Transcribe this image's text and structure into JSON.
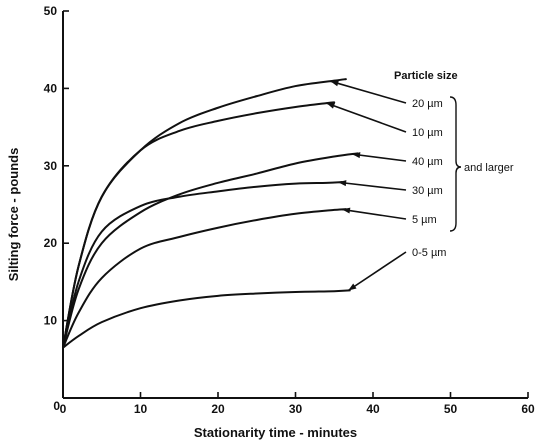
{
  "chart_data": {
    "type": "line",
    "xlabel": "Stationarity time - minutes",
    "ylabel": "Silting force - pounds",
    "xlim": [
      0,
      60
    ],
    "ylim": [
      0,
      50
    ],
    "xticks": [
      0,
      10,
      20,
      30,
      40,
      50,
      60
    ],
    "yticks": [
      10,
      20,
      30,
      40,
      50
    ],
    "grid": false,
    "legend_title": "Particle size",
    "group_label": "and larger",
    "series": [
      {
        "name": "20 µm",
        "x": [
          0,
          2,
          5,
          10,
          15,
          20,
          25,
          30,
          35,
          36.5
        ],
        "y": [
          6.5,
          17,
          26,
          32,
          35.5,
          37.5,
          39,
          40.3,
          41,
          41.2
        ]
      },
      {
        "name": "10 µm",
        "x": [
          0,
          2,
          5,
          10,
          15,
          20,
          25,
          30,
          34,
          35
        ],
        "y": [
          6.5,
          17,
          26,
          32,
          34.5,
          35.8,
          36.8,
          37.6,
          38.1,
          38.2
        ]
      },
      {
        "name": "40 µm",
        "x": [
          0,
          2,
          5,
          10,
          15,
          20,
          25,
          30,
          35,
          38
        ],
        "y": [
          6.5,
          14,
          20,
          24,
          26.3,
          27.8,
          29,
          30.3,
          31.2,
          31.6
        ]
      },
      {
        "name": "30 µm",
        "x": [
          0,
          2,
          5,
          10,
          15,
          20,
          25,
          30,
          34,
          36
        ],
        "y": [
          6.5,
          15,
          21.5,
          24.8,
          26,
          26.7,
          27.3,
          27.7,
          27.8,
          27.9
        ]
      },
      {
        "name": "5 µm",
        "x": [
          0,
          2,
          5,
          10,
          15,
          20,
          25,
          30,
          35,
          36.5
        ],
        "y": [
          6.5,
          11,
          15.5,
          19.3,
          20.8,
          22,
          23,
          23.8,
          24.3,
          24.4
        ]
      },
      {
        "name": "0-5 µm",
        "x": [
          0,
          2,
          5,
          10,
          15,
          20,
          25,
          30,
          35,
          37
        ],
        "y": [
          6.5,
          8,
          9.8,
          11.6,
          12.6,
          13.2,
          13.5,
          13.7,
          13.8,
          13.9
        ]
      }
    ]
  }
}
